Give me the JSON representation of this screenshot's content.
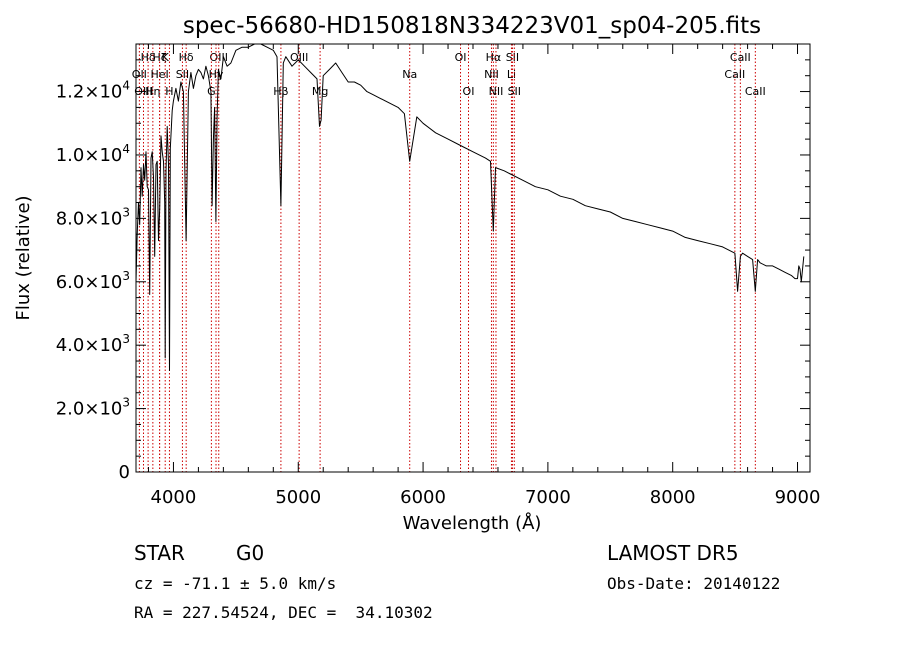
{
  "chart_data": {
    "type": "line",
    "title": "spec-56680-HD150818N334223V01_sp04-205.fits",
    "xlabel": "Wavelength (Å)",
    "ylabel": "Flux (relative)",
    "xlim": [
      3700,
      9100
    ],
    "ylim": [
      0,
      13500
    ],
    "grid": false,
    "x_ticks": [
      4000,
      5000,
      6000,
      7000,
      8000,
      9000
    ],
    "x_tick_labels": [
      "4000",
      "5000",
      "6000",
      "7000",
      "8000",
      "9000"
    ],
    "y_ticks": [
      0,
      2000,
      4000,
      6000,
      8000,
      10000,
      12000
    ],
    "y_tick_labels": [
      {
        "mant": "0",
        "exp": ""
      },
      {
        "mant": "2.0×10",
        "exp": "3"
      },
      {
        "mant": "4.0×10",
        "exp": "3"
      },
      {
        "mant": "6.0×10",
        "exp": "3"
      },
      {
        "mant": "8.0×10",
        "exp": "3"
      },
      {
        "mant": "1.0×10",
        "exp": "4"
      },
      {
        "mant": "1.2×10",
        "exp": "4"
      }
    ],
    "series": [
      {
        "x": [
          3700,
          3710,
          3720,
          3730,
          3740,
          3750,
          3760,
          3770,
          3780,
          3790,
          3800,
          3810,
          3820,
          3830,
          3840,
          3850,
          3860,
          3870,
          3880,
          3890,
          3900,
          3910,
          3920,
          3930,
          3934,
          3940,
          3950,
          3960,
          3968,
          3975,
          3990,
          4000,
          4020,
          4040,
          4060,
          4080,
          4101,
          4120,
          4140,
          4160,
          4180,
          4200,
          4220,
          4240,
          4260,
          4280,
          4300,
          4310,
          4320,
          4330,
          4340,
          4350,
          4360,
          4380,
          4400,
          4430,
          4460,
          4500,
          4550,
          4600,
          4650,
          4700,
          4750,
          4800,
          4830,
          4861,
          4880,
          4900,
          4950,
          5000,
          5050,
          5100,
          5150,
          5170,
          5183,
          5200,
          5250,
          5300,
          5350,
          5400,
          5450,
          5500,
          5550,
          5600,
          5700,
          5800,
          5850,
          5893,
          5950,
          6000,
          6100,
          6200,
          6300,
          6400,
          6500,
          6540,
          6563,
          6580,
          6650,
          6700,
          6800,
          6900,
          7000,
          7100,
          7200,
          7300,
          7400,
          7500,
          7600,
          7700,
          7800,
          7900,
          8000,
          8100,
          8200,
          8300,
          8400,
          8498,
          8520,
          8542,
          8560,
          8600,
          8640,
          8662,
          8680,
          8700,
          8750,
          8800,
          8850,
          8900,
          8950,
          8980,
          9000,
          9010,
          9020,
          9030,
          9050
        ],
        "y": [
          6000,
          7500,
          8500,
          7800,
          9600,
          8700,
          9700,
          9200,
          10100,
          9000,
          8900,
          5600,
          9900,
          10100,
          9300,
          6800,
          9700,
          9800,
          7300,
          8300,
          10600,
          10100,
          9800,
          8500,
          3600,
          9500,
          10900,
          9700,
          3200,
          10200,
          11400,
          11700,
          12100,
          11700,
          12300,
          12000,
          7300,
          12000,
          12600,
          12100,
          12500,
          12700,
          12600,
          12400,
          12800,
          12500,
          12000,
          8400,
          10500,
          11500,
          7900,
          11200,
          12700,
          12400,
          13100,
          12800,
          12900,
          13300,
          13400,
          13400,
          13500,
          13500,
          13400,
          13300,
          13100,
          8400,
          12900,
          13100,
          12800,
          13000,
          12800,
          12600,
          12400,
          10900,
          11100,
          12500,
          12700,
          12900,
          12600,
          12300,
          12300,
          12200,
          12000,
          11900,
          11700,
          11500,
          11300,
          9800,
          11200,
          11000,
          10700,
          10500,
          10300,
          10100,
          9900,
          9800,
          7600,
          9600,
          9500,
          9400,
          9200,
          9000,
          8900,
          8700,
          8600,
          8400,
          8300,
          8200,
          8000,
          7900,
          7800,
          7700,
          7600,
          7400,
          7300,
          7200,
          7100,
          6900,
          5700,
          6800,
          6900,
          6800,
          6700,
          5700,
          6700,
          6600,
          6500,
          6500,
          6400,
          6300,
          6200,
          6100,
          6100,
          6500,
          6400,
          6000,
          6800
        ]
      }
    ],
    "line_markers": [
      {
        "name": "Hδ",
        "x": 3797,
        "row": 1
      },
      {
        "name": "OII",
        "x": 3727,
        "row": 2
      },
      {
        "name": "OIII",
        "x": 3760,
        "row": 3
      },
      {
        "name": "Hζ",
        "x": 3889,
        "row": 1
      },
      {
        "name": "Hη",
        "x": 3835,
        "row": 3
      },
      {
        "name": "K",
        "x": 3934,
        "row": 1
      },
      {
        "name": "HeI",
        "x": 3889,
        "row": 2
      },
      {
        "name": "SII",
        "x": 4072,
        "row": 2
      },
      {
        "name": "H",
        "x": 3968,
        "row": 3
      },
      {
        "name": "Hδ",
        "x": 4102,
        "row": 1
      },
      {
        "name": "OIII",
        "x": 4363,
        "row": 1
      },
      {
        "name": "Hγ",
        "x": 4341,
        "row": 2
      },
      {
        "name": "G",
        "x": 4304,
        "row": 3
      },
      {
        "name": "OIII",
        "x": 5007,
        "row": 1
      },
      {
        "name": "Hβ",
        "x": 4861,
        "row": 3
      },
      {
        "name": "Mg",
        "x": 5175,
        "row": 3
      },
      {
        "name": "Na",
        "x": 5893,
        "row": 2
      },
      {
        "name": "OI",
        "x": 6300,
        "row": 1
      },
      {
        "name": "OI",
        "x": 6364,
        "row": 3
      },
      {
        "name": "Hα",
        "x": 6563,
        "row": 1
      },
      {
        "name": "SII",
        "x": 6716,
        "row": 1
      },
      {
        "name": "NII",
        "x": 6548,
        "row": 2
      },
      {
        "name": "Li",
        "x": 6708,
        "row": 2
      },
      {
        "name": "NII",
        "x": 6584,
        "row": 3
      },
      {
        "name": "SII",
        "x": 6731,
        "row": 3
      },
      {
        "name": "CaII",
        "x": 8542,
        "row": 1
      },
      {
        "name": "CaII",
        "x": 8498,
        "row": 2
      },
      {
        "name": "CaII",
        "x": 8662,
        "row": 3
      }
    ]
  },
  "info": {
    "object_class": "STAR",
    "subclass": "G0",
    "survey": "LAMOST DR5",
    "cz_line": "cz = -71.1 ± 5.0 km/s",
    "obs_date": "Obs-Date: 20140122",
    "coords": "RA = 227.54524, DEC =  34.10302"
  },
  "colors": {
    "axis": "#000000",
    "spectrum": "#000000",
    "marker_line": "#cc0000",
    "background": "#ffffff"
  }
}
